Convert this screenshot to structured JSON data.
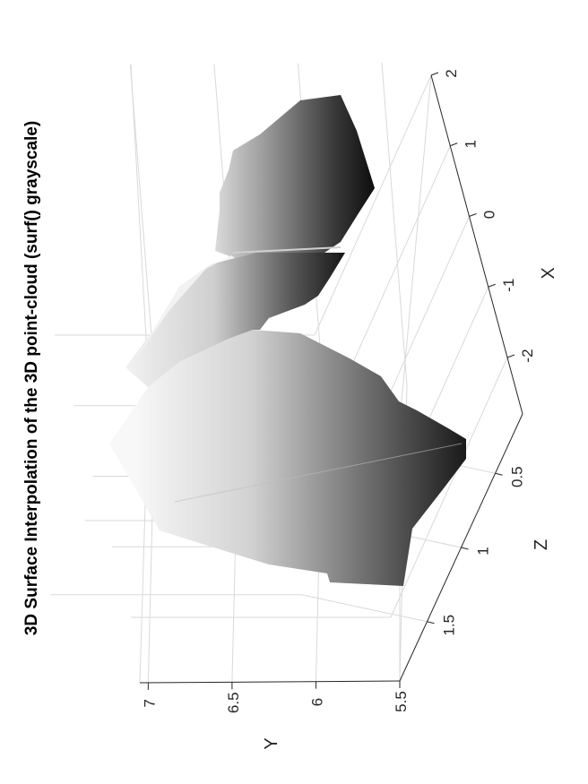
{
  "chart_data": {
    "type": "surface",
    "title": "3D Surface Interpolation of the 3D point-cloud (surf() grayscale)",
    "colormap": "grayscale",
    "grid": true,
    "x_axis": {
      "label": "X",
      "range": [
        -2.8,
        2
      ],
      "ticks": [
        -2,
        -1,
        0,
        1,
        2
      ],
      "tick_labels": [
        "-2",
        "-1",
        "0",
        "1",
        "2"
      ]
    },
    "y_axis": {
      "label": "Y",
      "range": [
        5.5,
        7.05
      ],
      "ticks": [
        5.5,
        6,
        6.5,
        7
      ],
      "tick_labels": [
        "5.5",
        "6",
        "6.5",
        "7"
      ]
    },
    "z_axis": {
      "label": "Z",
      "range": [
        0.1,
        1.9
      ],
      "ticks": [
        0.5,
        1,
        1.5
      ],
      "tick_labels": [
        "0.5",
        "1",
        "1.5"
      ]
    },
    "surface_patches": [
      {
        "name": "left",
        "shade_top": "#f6f6f6",
        "shade_bottom": "#1c1c1c"
      },
      {
        "name": "right-lower",
        "shade_top": "#f0f0f0",
        "shade_bottom": "#151515"
      },
      {
        "name": "right-upper",
        "shade_top": "#e8e8e8",
        "shade_bottom": "#0d0d0d"
      }
    ]
  }
}
